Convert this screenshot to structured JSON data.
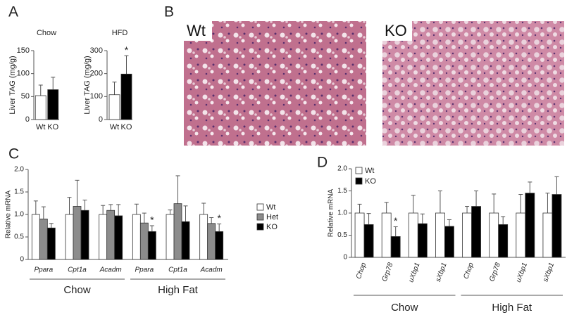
{
  "panel_labels": [
    "A",
    "B",
    "C",
    "D"
  ],
  "images": [
    {
      "label": "Wt"
    },
    {
      "label": "KO"
    }
  ],
  "chart_data": [
    {
      "type": "bar",
      "title": "Chow",
      "y_label": "Liver TAG (mg/g)",
      "categories": [
        "Wt",
        "KO"
      ],
      "values": [
        52,
        65
      ],
      "errors": [
        23,
        27
      ],
      "colors": [
        "#ffffff",
        "#000000"
      ],
      "markers": [
        null,
        null
      ],
      "ylim": [
        0,
        150
      ],
      "yticks": [
        0,
        50,
        100,
        150
      ]
    },
    {
      "type": "bar",
      "title": "HFD",
      "y_label": "Liver TAG (mg/g)",
      "categories": [
        "Wt",
        "KO"
      ],
      "values": [
        108,
        198
      ],
      "errors": [
        55,
        80
      ],
      "colors": [
        "#ffffff",
        "#000000"
      ],
      "markers": [
        null,
        "*"
      ],
      "ylim": [
        0,
        300
      ],
      "yticks": [
        0,
        100,
        200,
        300
      ]
    },
    {
      "type": "bar",
      "y_label": "Relative mRNA",
      "categories": [
        "Ppara",
        "Cpt1a",
        "Acadm",
        "Ppara",
        "Cpt1a",
        "Acadm"
      ],
      "group_labels": [
        "Chow",
        "High Fat"
      ],
      "series": [
        {
          "name": "Wt",
          "color": "#ffffff",
          "values": [
            1.0,
            1.0,
            1.0,
            1.0,
            1.0,
            1.0
          ],
          "errors": [
            0.3,
            0.38,
            0.2,
            0.23,
            0.1,
            0.25
          ],
          "markers": [
            null,
            null,
            null,
            null,
            null,
            null
          ]
        },
        {
          "name": "Het",
          "color": "#8c8c8c",
          "values": [
            0.9,
            1.18,
            1.09,
            0.81,
            1.24,
            0.8
          ],
          "errors": [
            0.27,
            0.58,
            0.13,
            0.22,
            0.62,
            0.13
          ],
          "markers": [
            null,
            null,
            null,
            null,
            null,
            null
          ]
        },
        {
          "name": "KO",
          "color": "#000000",
          "values": [
            0.7,
            1.09,
            0.97,
            0.62,
            0.84,
            0.62
          ],
          "errors": [
            0.1,
            0.23,
            0.25,
            0.13,
            0.35,
            0.17
          ],
          "markers": [
            null,
            null,
            null,
            "*",
            null,
            "*"
          ]
        }
      ],
      "ylim": [
        0,
        2
      ],
      "yticks": [
        0,
        0.5,
        {
          "value": 1,
          "label": "1.0"
        },
        1.5,
        {
          "value": 2,
          "label": "2.0"
        }
      ],
      "legend": "right"
    },
    {
      "type": "bar",
      "y_label": "Relative mRNA",
      "categories": [
        "Chop",
        "Grp78",
        "uXbp1",
        "sXbp1",
        "Chop",
        "Grp78",
        "uXbp1",
        "sXbp1"
      ],
      "group_labels": [
        "Chow",
        "High Fat"
      ],
      "series": [
        {
          "name": "Wt",
          "color": "#ffffff",
          "values": [
            1.0,
            1.0,
            1.0,
            1.0,
            1.0,
            1.0,
            1.0,
            1.0
          ],
          "errors": [
            0.2,
            0.24,
            0.4,
            0.5,
            0.15,
            0.43,
            0.42,
            0.45
          ],
          "markers": [
            null,
            null,
            null,
            null,
            null,
            null,
            null,
            null
          ]
        },
        {
          "name": "KO",
          "color": "#000000",
          "values": [
            0.74,
            0.47,
            0.76,
            0.7,
            1.15,
            0.74,
            1.45,
            1.42
          ],
          "errors": [
            0.25,
            0.22,
            0.22,
            0.15,
            0.35,
            0.18,
            0.25,
            0.4
          ],
          "markers": [
            null,
            "*",
            null,
            null,
            null,
            null,
            null,
            null
          ]
        }
      ],
      "ylim": [
        0,
        2
      ],
      "yticks": [
        0,
        0.5,
        {
          "value": 1,
          "label": "1.0"
        },
        1.5,
        {
          "value": 2,
          "label": "2.0"
        }
      ],
      "legend": "top-left"
    }
  ]
}
